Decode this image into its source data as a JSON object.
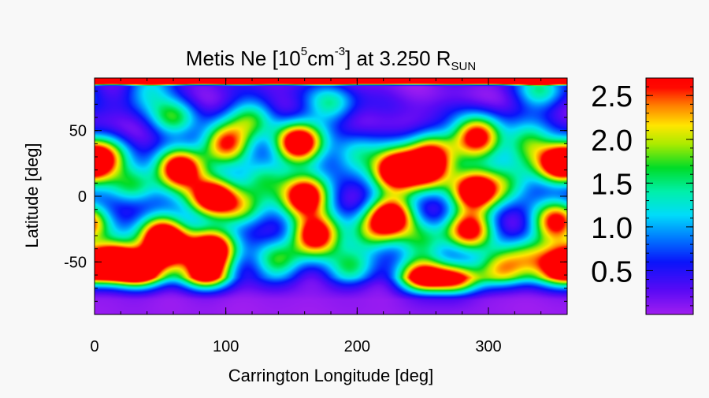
{
  "chart_data": {
    "type": "heatmap",
    "title": {
      "prefix": "Metis Ne [10",
      "exp1": "5",
      "mid": "cm",
      "exp2": "-3",
      "suffix": "]  at 3.250 R",
      "sub": "SUN"
    },
    "xlabel": "Carrington Longitude [deg]",
    "ylabel": "Latitude [deg]",
    "xlim": [
      0,
      360
    ],
    "ylim": [
      -90,
      90
    ],
    "x_ticks": [
      0,
      100,
      200,
      300
    ],
    "y_ticks": [
      -50,
      0,
      50
    ],
    "x_tick_labels": [
      "0",
      "100",
      "200",
      "300"
    ],
    "y_tick_labels": [
      "-50",
      "0",
      "50"
    ],
    "colorbar": {
      "range": [
        0,
        2.7
      ],
      "ticks": [
        0.5,
        1.0,
        1.5,
        2.0,
        2.5
      ],
      "tick_labels": [
        "0.5",
        "1.0",
        "1.5",
        "2.0",
        "2.5"
      ],
      "colormap": "rainbow (purple-blue-cyan-green-yellow-red)"
    },
    "value_unit": "10^5 cm^-3",
    "background_level": 0.2,
    "features": [
      {
        "lon": 55,
        "lat": -40,
        "value": 3.0
      },
      {
        "lon": 15,
        "lat": -50,
        "value": 3.0
      },
      {
        "lon": 35,
        "lat": -58,
        "value": 2.8
      },
      {
        "lon": 90,
        "lat": -40,
        "value": 3.0
      },
      {
        "lon": 90,
        "lat": 0,
        "value": 3.0
      },
      {
        "lon": 85,
        "lat": -60,
        "value": 2.6
      },
      {
        "lon": 65,
        "lat": 20,
        "value": 3.0
      },
      {
        "lon": 155,
        "lat": 40,
        "value": 3.2
      },
      {
        "lon": 160,
        "lat": 0,
        "value": 3.2
      },
      {
        "lon": 168,
        "lat": -30,
        "value": 3.0
      },
      {
        "lon": 100,
        "lat": 40,
        "value": 2.5
      },
      {
        "lon": 230,
        "lat": 20,
        "value": 3.2
      },
      {
        "lon": 225,
        "lat": -15,
        "value": 3.0
      },
      {
        "lon": 255,
        "lat": 20,
        "value": 2.7
      },
      {
        "lon": 257,
        "lat": 37,
        "value": 1.5
      },
      {
        "lon": 290,
        "lat": 5,
        "value": 3.0
      },
      {
        "lon": 285,
        "lat": -25,
        "value": 2.6
      },
      {
        "lon": 292,
        "lat": 45,
        "value": 2.8
      },
      {
        "lon": 250,
        "lat": -65,
        "value": 3.0
      },
      {
        "lon": 275,
        "lat": -68,
        "value": 2.8
      },
      {
        "lon": 355,
        "lat": 25,
        "value": 3.0
      },
      {
        "lon": 352,
        "lat": -20,
        "value": 2.6
      },
      {
        "lon": 355,
        "lat": -55,
        "value": 2.6
      },
      {
        "lon": 310,
        "lat": -55,
        "value": 1.8
      },
      {
        "lon": 330,
        "lat": -48,
        "value": 1.4
      },
      {
        "lon": 50,
        "lat": -25,
        "value": 1.8
      },
      {
        "lon": 30,
        "lat": 10,
        "value": 1.3
      },
      {
        "lon": 10,
        "lat": 30,
        "value": 1.3
      },
      {
        "lon": 120,
        "lat": 60,
        "value": 1.3
      },
      {
        "lon": 180,
        "lat": 70,
        "value": 1.2
      },
      {
        "lon": 140,
        "lat": -50,
        "value": 1.4
      },
      {
        "lon": 195,
        "lat": -55,
        "value": 1.2
      },
      {
        "lon": 330,
        "lat": 40,
        "value": 1.4
      },
      {
        "lon": 315,
        "lat": 10,
        "value": 1.3
      },
      {
        "lon": 200,
        "lat": 30,
        "value": 1.2
      },
      {
        "lon": 60,
        "lat": 60,
        "value": 1.3
      },
      {
        "lon": 110,
        "lat": -10,
        "value": 1.3
      },
      {
        "lon": 130,
        "lat": 10,
        "value": 1.2
      },
      {
        "lon": 250,
        "lat": -35,
        "value": 1.2
      },
      {
        "lon": 210,
        "lat": -30,
        "value": 1.3
      },
      {
        "lon": 340,
        "lat": 80,
        "value": 1.2
      },
      {
        "lon": 40,
        "lat": 80,
        "value": 1.0
      }
    ],
    "polar_caps": {
      "north": {
        "lat": 88,
        "value": 3.0
      },
      "south": {
        "lat": -80,
        "value": 0.0
      }
    }
  }
}
